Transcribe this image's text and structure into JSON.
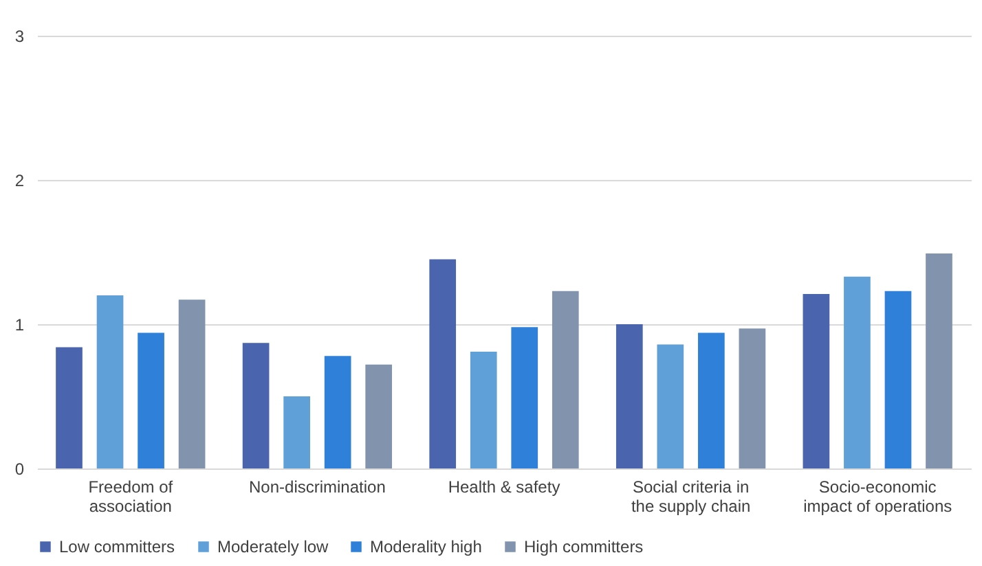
{
  "chart_data": {
    "type": "bar",
    "categories": [
      "Freedom of association",
      "Non-discrimination",
      "Health & safety",
      "Social criteria in the supply chain",
      "Socio-economic impact of operations"
    ],
    "series": [
      {
        "name": "Low committers",
        "color": "#4a65ae",
        "values": [
          0.84,
          0.87,
          1.45,
          1.0,
          1.21
        ]
      },
      {
        "name": "Moderately low",
        "color": "#5fa0d8",
        "values": [
          1.2,
          0.5,
          0.81,
          0.86,
          1.33
        ]
      },
      {
        "name": "Moderality high",
        "color": "#2f80d8",
        "values": [
          0.94,
          0.78,
          0.98,
          0.94,
          1.23
        ]
      },
      {
        "name": "High committers",
        "color": "#8193ad",
        "values": [
          1.17,
          0.72,
          1.23,
          0.97,
          1.49
        ]
      }
    ],
    "ylim": [
      0,
      3
    ],
    "yticks": [
      0,
      1,
      2,
      3
    ],
    "grid": "y",
    "legend": "bottom"
  }
}
